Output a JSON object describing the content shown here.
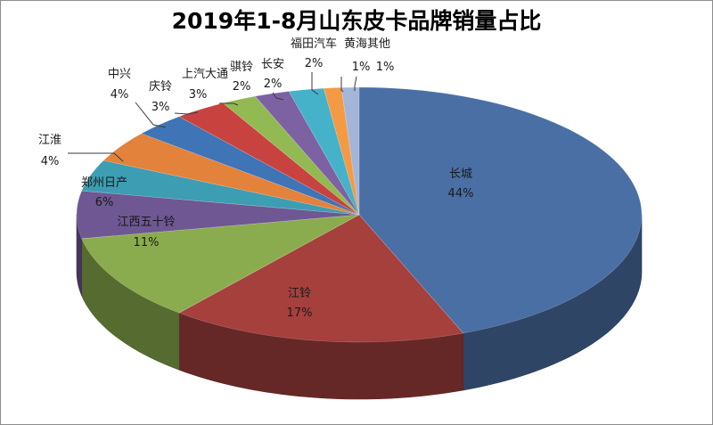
{
  "chart_data": {
    "type": "pie",
    "title": "2019年1-8月山东皮卡品牌销量占比",
    "slices": [
      {
        "name": "长城",
        "value": 44,
        "label": "44%",
        "color": "#4a6fa5"
      },
      {
        "name": "江铃",
        "value": 17,
        "label": "17%",
        "color": "#a5403d"
      },
      {
        "name": "江西五十铃",
        "value": 11,
        "label": "11%",
        "color": "#8aac4e"
      },
      {
        "name": "郑州日产",
        "value": 6,
        "label": "6%",
        "color": "#6e5792"
      },
      {
        "name": "江淮",
        "value": 4,
        "label": "4%",
        "color": "#3d9db3"
      },
      {
        "name": "中兴",
        "value": 4,
        "label": "4%",
        "color": "#e3823b"
      },
      {
        "name": "庆铃",
        "value": 3,
        "label": "3%",
        "color": "#3f74b6"
      },
      {
        "name": "上汽大通",
        "value": 3,
        "label": "3%",
        "color": "#c8433f"
      },
      {
        "name": "骐铃",
        "value": 2,
        "label": "2%",
        "color": "#93b952"
      },
      {
        "name": "长安",
        "value": 2,
        "label": "2%",
        "color": "#7d62a3"
      },
      {
        "name": "福田汽车",
        "value": 2,
        "label": "2%",
        "color": "#45b2ca"
      },
      {
        "name": "黄海其他",
        "value": 1,
        "label": "1%",
        "color": "#f49a45"
      },
      {
        "name": "",
        "value": 1,
        "label": "1%",
        "color": "#a3b6d9"
      }
    ]
  }
}
